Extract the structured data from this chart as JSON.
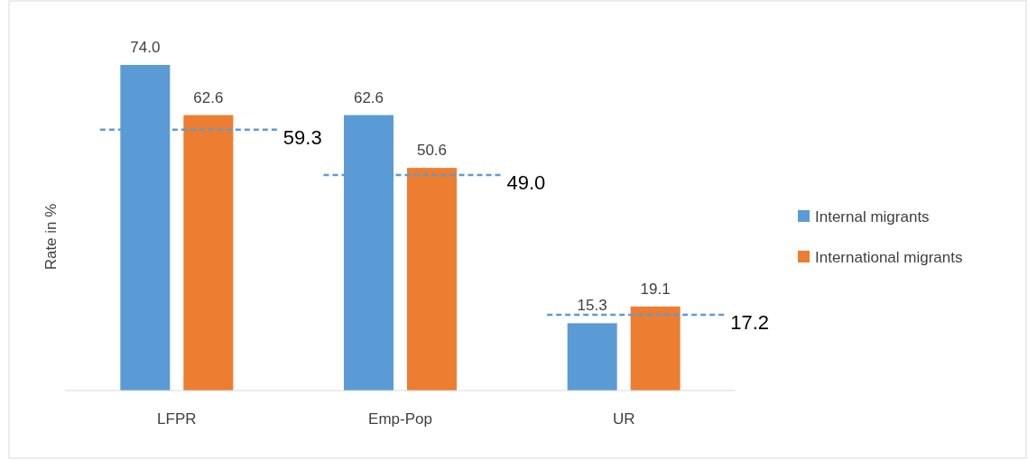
{
  "chart_data": {
    "type": "bar",
    "ylabel": "Rate in %",
    "categories": [
      "LFPR",
      "Emp-Pop",
      "UR"
    ],
    "series": [
      {
        "name": "Internal migrants",
        "color": "#5b9bd5",
        "values": [
          74.0,
          62.6,
          15.3
        ],
        "value_labels": [
          "74.0",
          "62.6",
          "15.3"
        ]
      },
      {
        "name": "International migrants",
        "color": "#ed7d31",
        "values": [
          62.6,
          50.6,
          19.1
        ],
        "value_labels": [
          "62.6",
          "50.6",
          "19.1"
        ]
      }
    ],
    "legend": "right",
    "ref_lines": [
      {
        "axis": "y",
        "value": 59.3,
        "label": "59.3",
        "color": "#5b9bd5",
        "line_style": "dashed"
      },
      {
        "axis": "y",
        "value": 49.0,
        "label": "49.0",
        "color": "#5b9bd5",
        "line_style": "dashed"
      },
      {
        "axis": "y",
        "value": 17.2,
        "label": "17.2",
        "color": "#5b9bd5",
        "line_style": "dashed"
      }
    ]
  }
}
